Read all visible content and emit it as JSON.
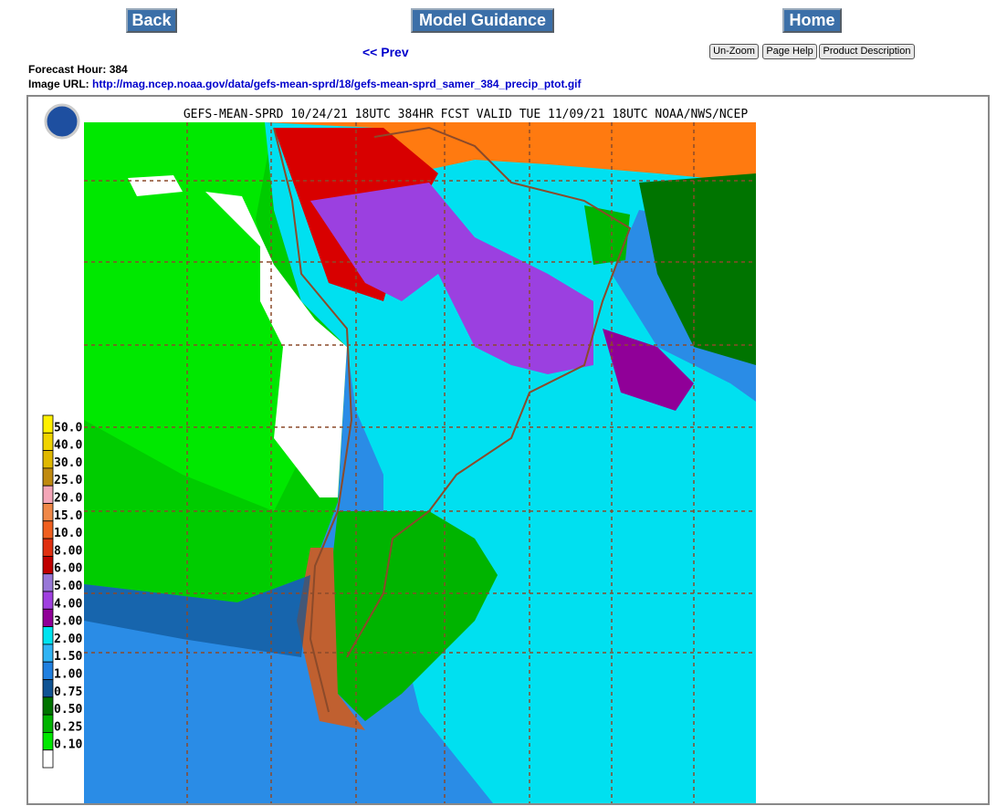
{
  "nav": {
    "back": "Back",
    "model_guidance": "Model Guidance",
    "home": "Home",
    "prev": "<< Prev"
  },
  "tools": {
    "unzoom": "Un-Zoom",
    "page_help": "Page Help",
    "product_description": "Product Description"
  },
  "info": {
    "forecast_hour_label": "Forecast Hour:",
    "forecast_hour": "384",
    "image_url_label": "Image URL:",
    "image_url": "http://mag.ncep.noaa.gov/data/gefs-mean-sprd/18/gefs-mean-sprd_samer_384_precip_ptot.gif"
  },
  "image": {
    "title": "GEFS-MEAN-SPRD 10/24/21 18UTC 384HR FCST VALID TUE 11/09/21 18UTC NOAA/NWS/NCEP",
    "legend": [
      {
        "label": "50.0",
        "color": "#fff000"
      },
      {
        "label": "40.0",
        "color": "#f0d400"
      },
      {
        "label": "30.0",
        "color": "#e0b800"
      },
      {
        "label": "25.0",
        "color": "#c08a10"
      },
      {
        "label": "20.0",
        "color": "#f4a6b8"
      },
      {
        "label": "15.0",
        "color": "#f08848"
      },
      {
        "label": "10.0",
        "color": "#f06020"
      },
      {
        "label": "8.00",
        "color": "#e03010"
      },
      {
        "label": "6.00",
        "color": "#c00000"
      },
      {
        "label": "5.00",
        "color": "#9878d8"
      },
      {
        "label": "4.00",
        "color": "#a040e0"
      },
      {
        "label": "3.00",
        "color": "#900098"
      },
      {
        "label": "2.00",
        "color": "#00e4f0"
      },
      {
        "label": "1.50",
        "color": "#30b4f4"
      },
      {
        "label": "1.00",
        "color": "#2080e0"
      },
      {
        "label": "0.75",
        "color": "#105494"
      },
      {
        "label": "0.50",
        "color": "#007400"
      },
      {
        "label": "0.25",
        "color": "#00b400"
      },
      {
        "label": "0.10",
        "color": "#00e800"
      }
    ]
  }
}
